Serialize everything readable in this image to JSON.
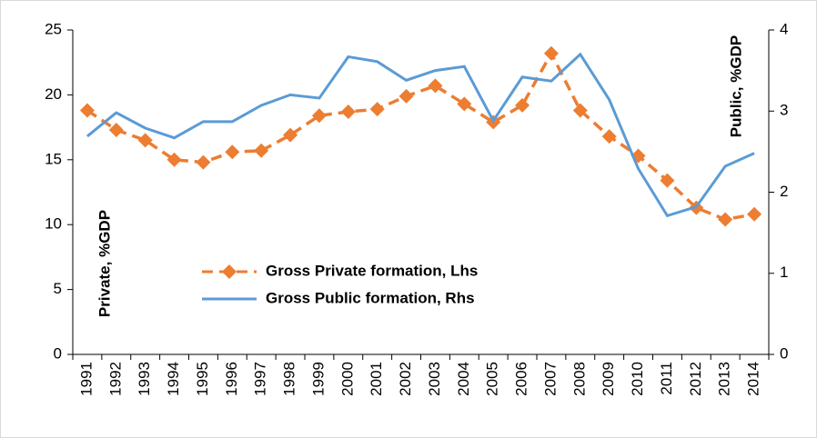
{
  "chart_data": {
    "type": "line",
    "categories": [
      "1991",
      "1992",
      "1993",
      "1994",
      "1995",
      "1996",
      "1997",
      "1998",
      "1999",
      "2000",
      "2001",
      "2002",
      "2003",
      "2004",
      "2005",
      "2006",
      "2007",
      "2008",
      "2009",
      "2010",
      "2011",
      "2012",
      "2013",
      "2014"
    ],
    "series": [
      {
        "name": "Gross Private formation, Lhs",
        "color": "#ED7D31",
        "axis": "y",
        "values": [
          18.8,
          17.3,
          16.5,
          15.0,
          14.8,
          15.6,
          15.7,
          16.9,
          18.4,
          18.7,
          18.9,
          19.9,
          20.7,
          19.3,
          17.9,
          19.2,
          23.2,
          18.8,
          16.8,
          15.3,
          13.4,
          11.3,
          10.4,
          10.8
        ]
      },
      {
        "name": "Gross Public formation, Rhs",
        "color": "#5B9BD5",
        "axis": "y2",
        "values": [
          2.69,
          2.98,
          2.79,
          2.67,
          2.87,
          2.87,
          3.07,
          3.2,
          3.16,
          3.67,
          3.61,
          3.38,
          3.5,
          3.55,
          2.88,
          3.42,
          3.37,
          3.7,
          3.14,
          2.29,
          1.71,
          1.82,
          2.32,
          2.48
        ]
      }
    ],
    "ylabel": "Private, %GDP",
    "y2label": "Public, %GDP",
    "ylim": [
      0,
      25
    ],
    "yticks": [
      0,
      5,
      10,
      15,
      20,
      25
    ],
    "y2lim": [
      0,
      4
    ],
    "y2ticks": [
      0,
      1,
      2,
      3,
      4
    ],
    "grid": false,
    "legend": "center"
  }
}
